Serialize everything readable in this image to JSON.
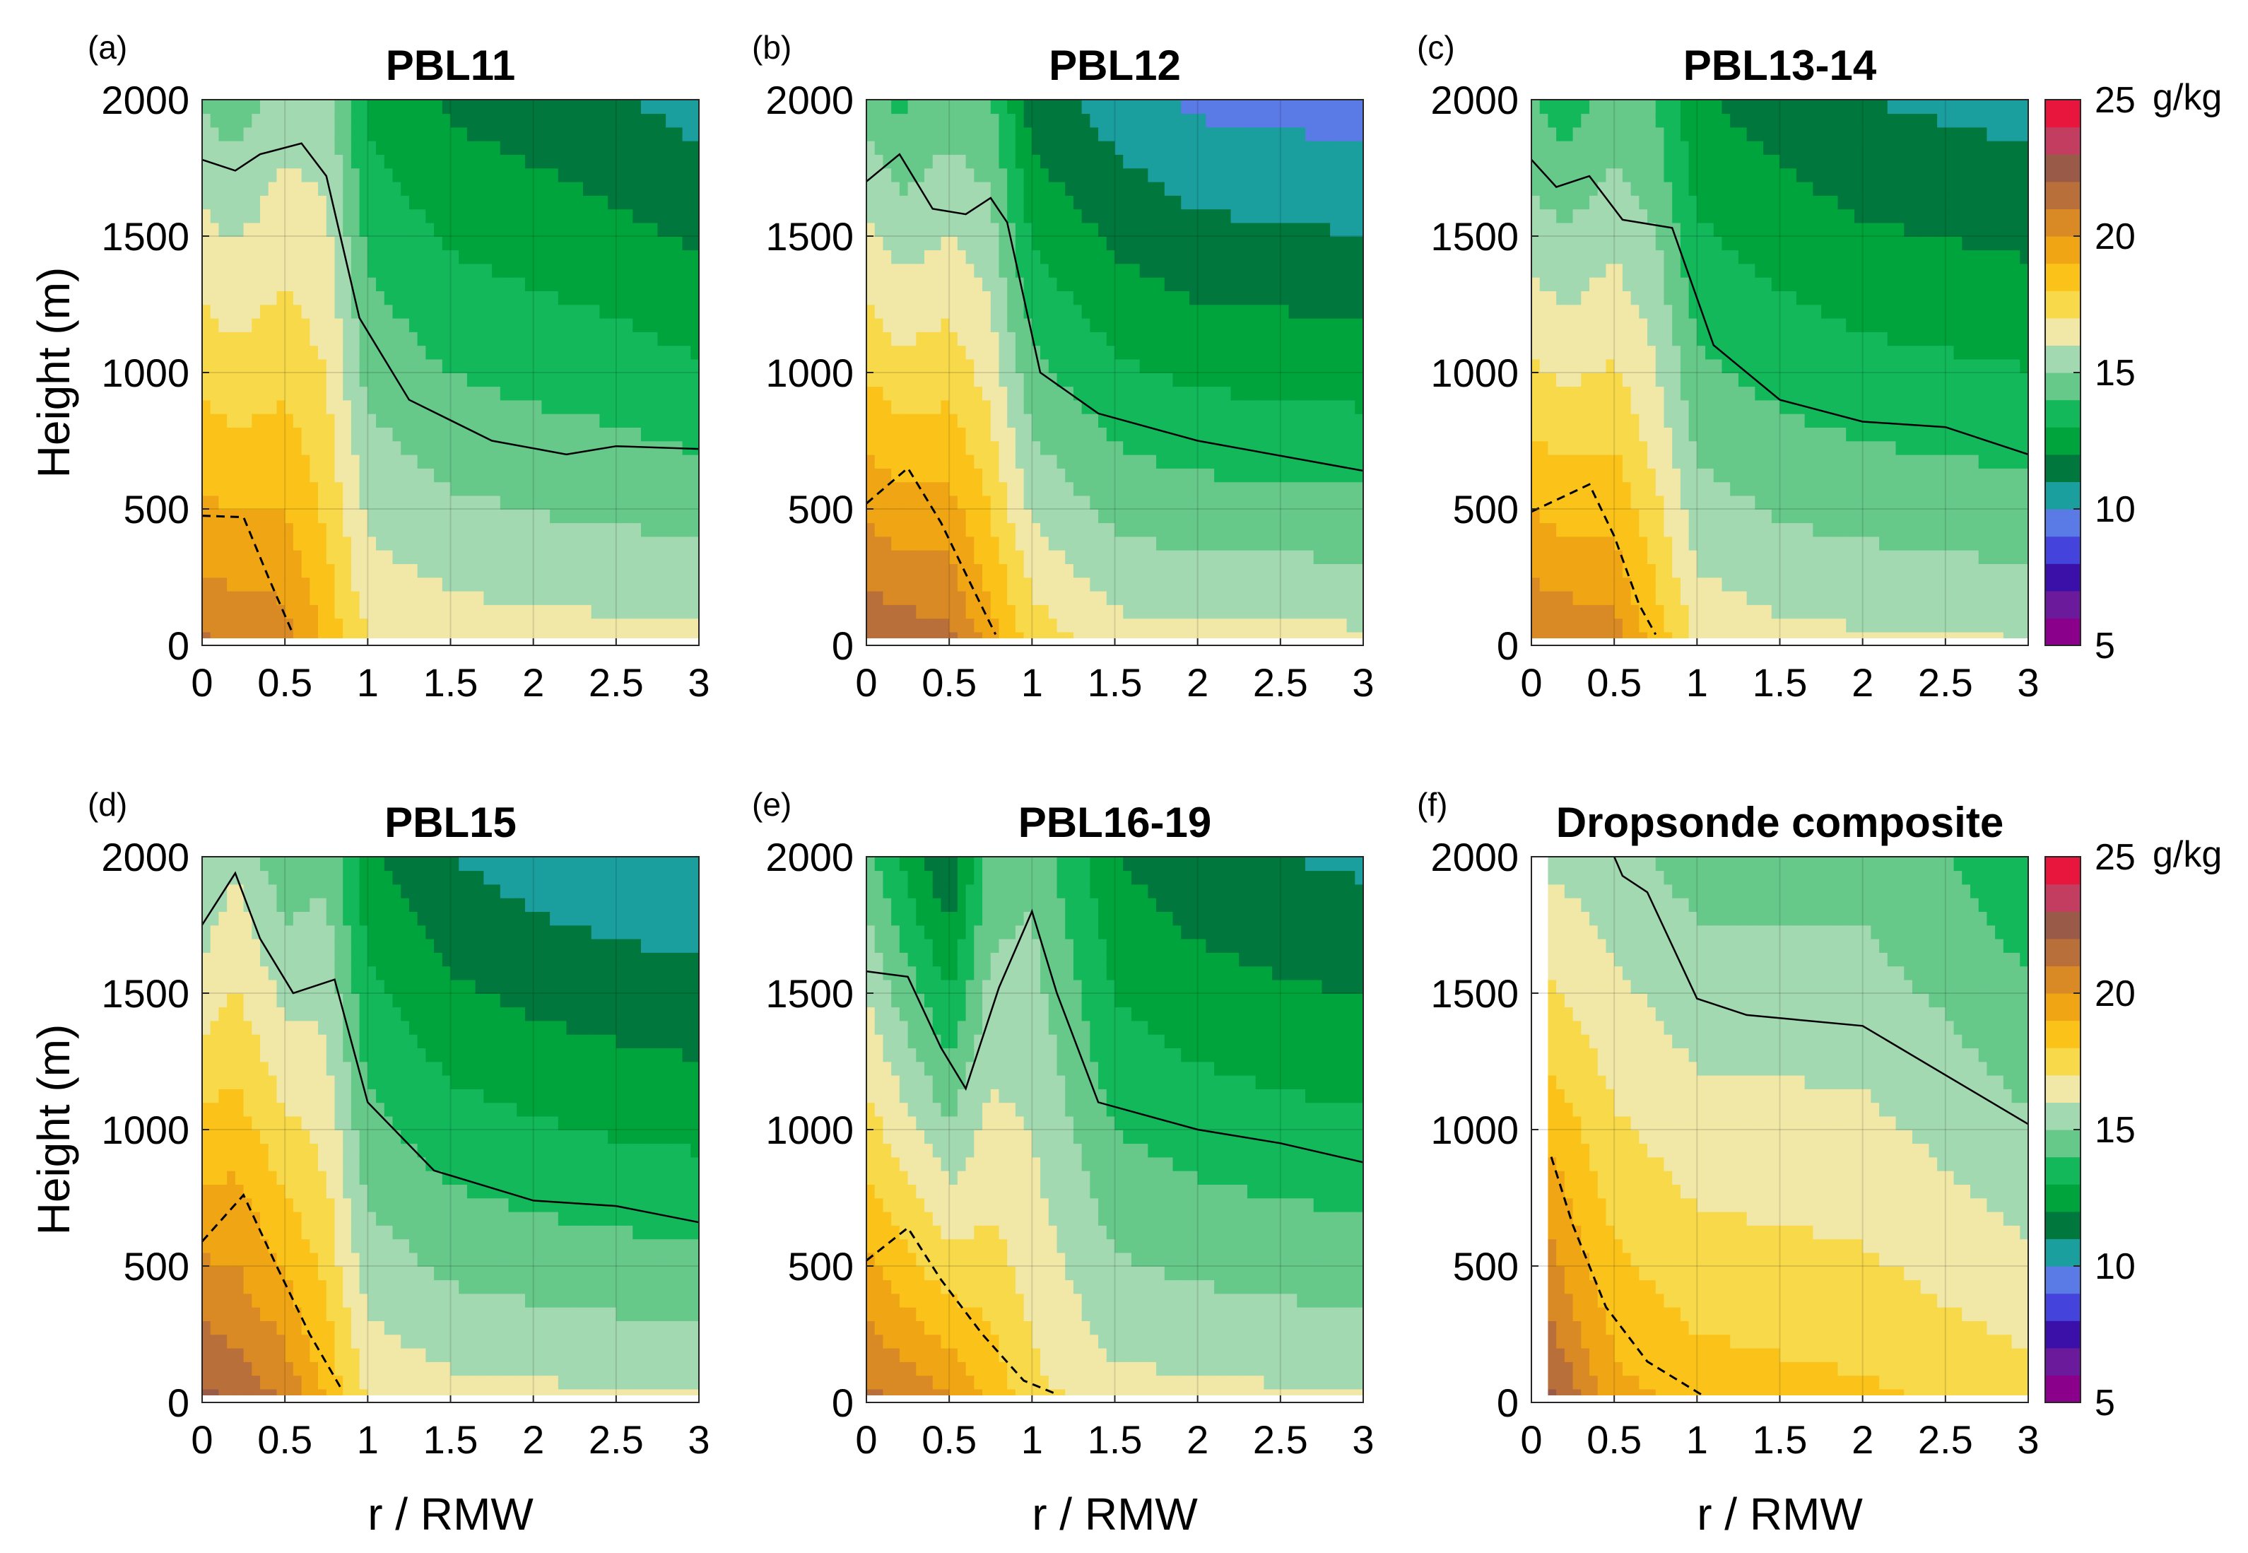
{
  "chart_data": {
    "type": "filled-contour",
    "variable": "specific humidity",
    "x_axis": {
      "label": "r / RMW",
      "range": [
        0,
        3
      ],
      "ticks": [
        "0",
        "0.5",
        "1",
        "1.5",
        "2",
        "2.5",
        "3"
      ]
    },
    "y_axis": {
      "label": "Height (m)",
      "range": [
        0,
        2000
      ],
      "ticks": [
        "0",
        "500",
        "1000",
        "1500",
        "2000"
      ]
    },
    "colorbar": {
      "unit": "g/kg",
      "range": [
        5,
        25
      ],
      "ticks": [
        "5",
        "10",
        "15",
        "20",
        "25"
      ],
      "bands": [
        {
          "lo": 16,
          "hi": 17,
          "color": "#fcc500"
        },
        {
          "lo": 17,
          "hi": 18,
          "color": "#fbae0d"
        },
        {
          "lo": 18,
          "hi": 19,
          "color": "#ea9a18"
        },
        {
          "lo": 19,
          "hi": 20,
          "color": "#cc8629"
        },
        {
          "lo": 20,
          "hi": 21,
          "color": "#b36f3c"
        },
        {
          "lo": 21,
          "hi": 22,
          "color": "#9a5947"
        },
        {
          "lo": 22,
          "hi": 23,
          "color": "#bd4863"
        },
        {
          "lo": 23,
          "hi": 25,
          "color": "#e6173c"
        }
      ],
      "palette": [
        "#8a008a",
        "#6a1a9a",
        "#3a10a8",
        "#4444dd",
        "#5a7ae6",
        "#1b9e9e",
        "#00773c",
        "#00a43c",
        "#12b85a",
        "#66c98a",
        "#a3d9b1",
        "#f1e8a8",
        "#f7d94a",
        "#fbc31a",
        "#f0a515",
        "#d98a24",
        "#b96f39",
        "#9a5a48",
        "#c33d60",
        "#e8153c"
      ]
    },
    "contour_lines": {
      "solid": "15 g/kg",
      "dashed": "20 g/kg"
    },
    "panels": [
      {
        "id": "a",
        "letter": "(a)",
        "title": "PBL11",
        "lower": {
          "x": [
            0,
            0.5,
            1,
            1.5,
            2,
            2.5,
            3
          ],
          "values": [
            21.2,
            20.6,
            17.1,
            16.7,
            16.5,
            16.5,
            16.4
          ]
        },
        "upper": {
          "x": [
            0,
            0.2,
            0.5,
            0.75,
            1,
            1.5,
            2,
            2.5,
            3
          ],
          "values": [
            14.9,
            14.5,
            15.5,
            15.5,
            12.8,
            11.8,
            11.5,
            11.1,
            10.6
          ]
        },
        "dashed_20": [
          [
            0,
            475
          ],
          [
            0.25,
            470
          ],
          [
            0.4,
            250
          ],
          [
            0.55,
            40
          ]
        ],
        "solid_15": [
          [
            0,
            1780
          ],
          [
            0.2,
            1740
          ],
          [
            0.35,
            1800
          ],
          [
            0.6,
            1840
          ],
          [
            0.75,
            1720
          ],
          [
            0.95,
            1200
          ],
          [
            1.25,
            900
          ],
          [
            1.75,
            750
          ],
          [
            2.2,
            700
          ],
          [
            2.5,
            730
          ],
          [
            3,
            720
          ]
        ]
      },
      {
        "id": "b",
        "letter": "(b)",
        "title": "PBL12",
        "lower": {
          "x": [
            0,
            0.5,
            1,
            1.5,
            2,
            2.5,
            3
          ],
          "values": [
            22.1,
            21.5,
            17.8,
            16.6,
            16.5,
            16.5,
            16.4
          ]
        },
        "upper": {
          "x": [
            0,
            0.2,
            0.5,
            0.75,
            1,
            1.5,
            2,
            2.5,
            3
          ],
          "values": [
            14.6,
            13.8,
            14.5,
            14.2,
            11.5,
            10.5,
            9.8,
            9.7,
            9.5
          ]
        },
        "dashed_20": [
          [
            0,
            520
          ],
          [
            0.25,
            650
          ],
          [
            0.45,
            450
          ],
          [
            0.65,
            200
          ],
          [
            0.78,
            40
          ]
        ],
        "solid_15": [
          [
            0,
            1700
          ],
          [
            0.2,
            1800
          ],
          [
            0.4,
            1600
          ],
          [
            0.6,
            1580
          ],
          [
            0.75,
            1640
          ],
          [
            0.85,
            1550
          ],
          [
            1.05,
            1000
          ],
          [
            1.4,
            850
          ],
          [
            2,
            750
          ],
          [
            3,
            640
          ]
        ]
      },
      {
        "id": "c",
        "letter": "(c)",
        "title": "PBL13-14",
        "lower": {
          "x": [
            0,
            0.5,
            1,
            1.5,
            2,
            2.5,
            3
          ],
          "values": [
            21.2,
            20.6,
            16.9,
            16.4,
            16.3,
            16.2,
            16.1
          ]
        },
        "upper": {
          "x": [
            0,
            0.2,
            0.5,
            0.75,
            1,
            1.5,
            2,
            2.5,
            3
          ],
          "values": [
            14.0,
            13.5,
            14.4,
            14.0,
            12.1,
            11.5,
            11.0,
            10.8,
            10.6
          ]
        },
        "dashed_20": [
          [
            0,
            490
          ],
          [
            0.35,
            590
          ],
          [
            0.5,
            400
          ],
          [
            0.65,
            150
          ],
          [
            0.75,
            40
          ]
        ],
        "solid_15": [
          [
            0,
            1780
          ],
          [
            0.15,
            1680
          ],
          [
            0.35,
            1720
          ],
          [
            0.55,
            1560
          ],
          [
            0.85,
            1530
          ],
          [
            1.1,
            1100
          ],
          [
            1.5,
            900
          ],
          [
            2,
            820
          ],
          [
            2.5,
            800
          ],
          [
            3,
            700
          ]
        ]
      },
      {
        "id": "d",
        "letter": "(d)",
        "title": "PBL15",
        "lower": {
          "x": [
            0,
            0.5,
            1,
            1.5,
            2,
            2.5,
            3
          ],
          "values": [
            22.5,
            21.0,
            17.0,
            16.5,
            16.4,
            16.3,
            16.2
          ]
        },
        "upper": {
          "x": [
            0,
            0.2,
            0.5,
            0.75,
            1,
            1.5,
            2,
            2.5,
            3
          ],
          "values": [
            14.8,
            15.8,
            14.3,
            14.8,
            12.2,
            11.0,
            10.5,
            10.2,
            10.0
          ]
        },
        "dashed_20": [
          [
            0,
            590
          ],
          [
            0.25,
            760
          ],
          [
            0.45,
            500
          ],
          [
            0.65,
            250
          ],
          [
            0.85,
            40
          ]
        ],
        "solid_15": [
          [
            0,
            1750
          ],
          [
            0.2,
            1940
          ],
          [
            0.35,
            1700
          ],
          [
            0.55,
            1500
          ],
          [
            0.8,
            1550
          ],
          [
            1,
            1100
          ],
          [
            1.4,
            850
          ],
          [
            2,
            740
          ],
          [
            2.5,
            720
          ],
          [
            3,
            660
          ]
        ]
      },
      {
        "id": "e",
        "letter": "(e)",
        "title": "PBL16-19",
        "lower": {
          "x": [
            0,
            0.5,
            1,
            1.5,
            2,
            2.5,
            3
          ],
          "values": [
            21.4,
            20.3,
            17.4,
            16.5,
            16.4,
            16.3,
            16.2
          ]
        },
        "upper": {
          "x": [
            0,
            0.2,
            0.5,
            0.75,
            1,
            1.5,
            2,
            2.5,
            3
          ],
          "values": [
            14.4,
            13.0,
            11.0,
            14.3,
            14.8,
            12.0,
            11.3,
            11.0,
            10.8
          ]
        },
        "dashed_20": [
          [
            0,
            520
          ],
          [
            0.25,
            640
          ],
          [
            0.45,
            450
          ],
          [
            0.7,
            250
          ],
          [
            0.95,
            80
          ],
          [
            1.15,
            30
          ]
        ],
        "solid_15": [
          [
            0,
            1580
          ],
          [
            0.25,
            1560
          ],
          [
            0.45,
            1300
          ],
          [
            0.6,
            1150
          ],
          [
            0.8,
            1520
          ],
          [
            1,
            1800
          ],
          [
            1.15,
            1500
          ],
          [
            1.4,
            1100
          ],
          [
            2,
            1000
          ],
          [
            2.5,
            950
          ],
          [
            3,
            880
          ]
        ]
      },
      {
        "id": "f",
        "letter": "(f)",
        "title": "Dropsonde composite",
        "x_start": 0.1,
        "lower": {
          "x": [
            0.1,
            0.5,
            1,
            1.5,
            2,
            2.5,
            3
          ],
          "values": [
            22.5,
            19.5,
            18.7,
            18.5,
            18.3,
            17.9,
            17.6
          ]
        },
        "upper": {
          "x": [
            0.1,
            0.5,
            1,
            1.5,
            2,
            2.5,
            3
          ],
          "values": [
            15.8,
            15.3,
            14.6,
            14.6,
            14.6,
            14.0,
            13.2
          ]
        },
        "dashed_20": [
          [
            0.12,
            900
          ],
          [
            0.25,
            650
          ],
          [
            0.45,
            350
          ],
          [
            0.7,
            150
          ],
          [
            1.05,
            20
          ]
        ],
        "solid_15": [
          [
            0.5,
            2000
          ],
          [
            0.55,
            1930
          ],
          [
            0.7,
            1870
          ],
          [
            1,
            1480
          ],
          [
            1.3,
            1420
          ],
          [
            2,
            1380
          ],
          [
            2.5,
            1200
          ],
          [
            3,
            1020
          ]
        ]
      }
    ]
  }
}
